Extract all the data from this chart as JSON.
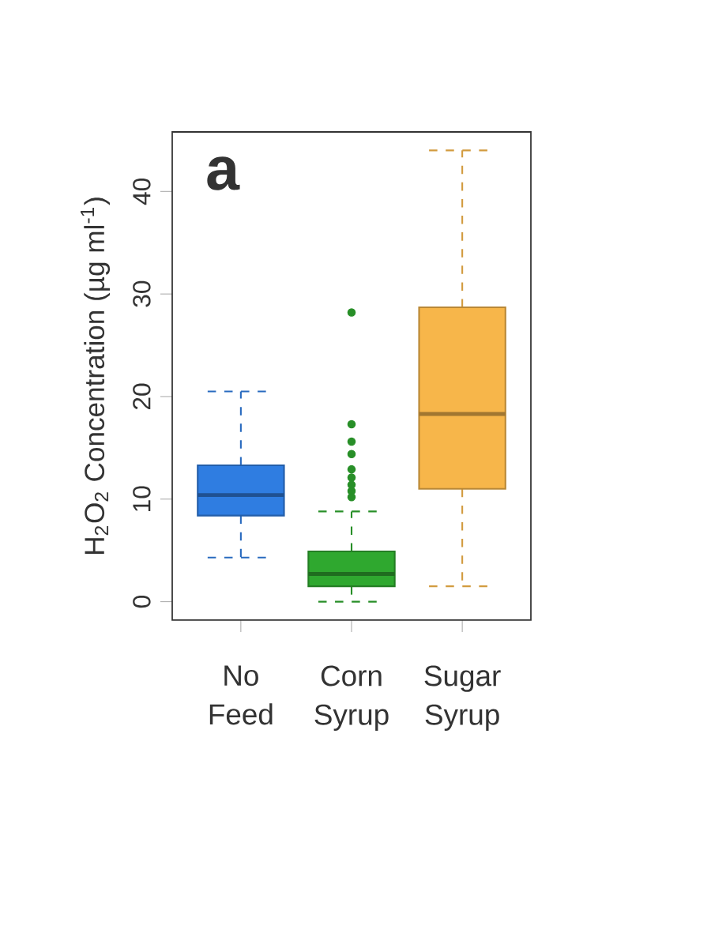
{
  "chart_data": {
    "type": "box",
    "ylabel": "H$_{2}$O$_{2}$ Concentration (µg ml$^{-1}$)",
    "categories": [
      "No Feed",
      "Corn Syrup",
      "Sugar Syrup"
    ],
    "boxes": [
      {
        "low": 4.3,
        "q1": 8.4,
        "median": 10.4,
        "q3": 13.3,
        "high": 20.5
      },
      {
        "low": 0,
        "q1": 1.5,
        "median": 2.7,
        "q3": 4.9,
        "high": 8.8,
        "outliers": [
          28.2,
          17.3,
          15.6,
          14.4,
          12.9,
          12.1,
          11.4,
          10.8,
          10.2
        ]
      },
      {
        "low": 1.5,
        "q1": 11.0,
        "median": 18.3,
        "q3": 28.7,
        "high": 44.0
      }
    ],
    "colors": [
      "#2f7de1",
      "#2fa82f",
      "#f7b64a"
    ],
    "ylim": [
      -1.8,
      45.8
    ],
    "yticks": [
      0,
      10,
      20,
      30,
      40
    ],
    "marker": "circle",
    "line_style": "dashed",
    "annotations": [
      "a"
    ]
  }
}
